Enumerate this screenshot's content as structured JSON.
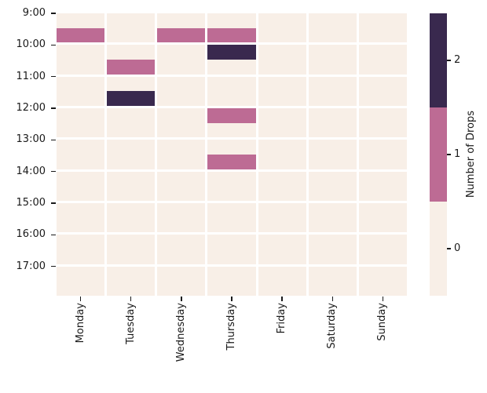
{
  "chart_data": {
    "type": "heatmap",
    "title": "",
    "x_categories": [
      "Monday",
      "Tuesday",
      "Wednesday",
      "Thursday",
      "Friday",
      "Saturday",
      "Sunday"
    ],
    "y_tick_labels": [
      "9:00",
      "10:00",
      "11:00",
      "12:00",
      "13:00",
      "14:00",
      "15:00",
      "16:00",
      "17:00"
    ],
    "row_times": [
      "9:00",
      "9:30",
      "10:00",
      "10:30",
      "11:00",
      "11:30",
      "12:00",
      "12:30",
      "13:00",
      "13:30",
      "14:00",
      "14:30",
      "15:00",
      "15:30",
      "16:00",
      "16:30",
      "17:00",
      "17:30"
    ],
    "values": [
      [
        0,
        0,
        0,
        0,
        0,
        0,
        0
      ],
      [
        1,
        0,
        1,
        1,
        0,
        0,
        0
      ],
      [
        0,
        0,
        0,
        2,
        0,
        0,
        0
      ],
      [
        0,
        1,
        0,
        0,
        0,
        0,
        0
      ],
      [
        0,
        0,
        0,
        0,
        0,
        0,
        0
      ],
      [
        0,
        2,
        0,
        0,
        0,
        0,
        0
      ],
      [
        0,
        0,
        0,
        1,
        0,
        0,
        0
      ],
      [
        0,
        0,
        0,
        0,
        0,
        0,
        0
      ],
      [
        0,
        0,
        0,
        0,
        0,
        0,
        0
      ],
      [
        0,
        0,
        0,
        1,
        0,
        0,
        0
      ],
      [
        0,
        0,
        0,
        0,
        0,
        0,
        0
      ],
      [
        0,
        0,
        0,
        0,
        0,
        0,
        0
      ],
      [
        0,
        0,
        0,
        0,
        0,
        0,
        0
      ],
      [
        0,
        0,
        0,
        0,
        0,
        0,
        0
      ],
      [
        0,
        0,
        0,
        0,
        0,
        0,
        0
      ],
      [
        0,
        0,
        0,
        0,
        0,
        0,
        0
      ],
      [
        0,
        0,
        0,
        0,
        0,
        0,
        0
      ],
      [
        0,
        0,
        0,
        0,
        0,
        0,
        0
      ]
    ],
    "color_levels": [
      {
        "value": 0,
        "color": "#f8efe7"
      },
      {
        "value": 1,
        "color": "#bd6b94"
      },
      {
        "value": 2,
        "color": "#39294e"
      }
    ],
    "grid_line_color": "#ffffff",
    "legend_position": "right",
    "colorbar": {
      "label": "Number of Drops",
      "tick_labels": [
        "2",
        "1",
        "0"
      ]
    }
  }
}
